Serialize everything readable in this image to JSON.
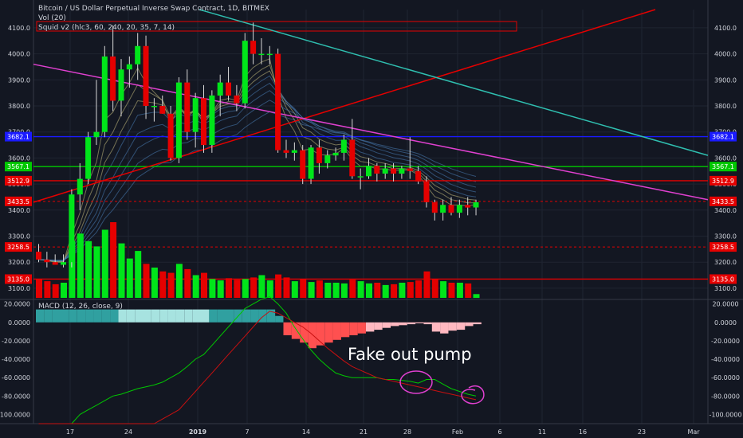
{
  "header": {
    "symbol": "Bitcoin / US Dollar Perpetual Inverse Swap Contract, 1D, BITMEX",
    "vol": "Vol (20)",
    "squid": "Squid v2 (hlc3, 60, 240, 20, 35, 7, 14)",
    "macd": "MACD (12, 26, close, 9)"
  },
  "annotation": "Fake out pump",
  "colors": {
    "background": "#131722",
    "up": "#00e51a",
    "down": "#e50000",
    "trend_red": "#e50000",
    "trend_magenta": "#e040d0",
    "trend_teal": "#2fbfb0",
    "level_blue": "#1a1aff",
    "level_green": "#00c800",
    "macd_line": "#00c800",
    "signal_line": "#c81010",
    "hist_teal": "#30a0a0",
    "hist_lightteal": "#a7e3e0",
    "hist_red": "#ff5050",
    "hist_pink": "#ffb8c0",
    "circle": "#e040d0"
  },
  "chart_data": [
    {
      "type": "candlestick",
      "title": "Bitcoin / US Dollar Perpetual Inverse Swap Contract, 1D, BITMEX",
      "x_ticks": [
        "17",
        "24",
        "2019",
        "7",
        "14",
        "21",
        "28",
        "Feb",
        "6",
        "11",
        "16",
        "23",
        "Mar"
      ],
      "y_ticks": [
        3100,
        3200,
        3300,
        3400,
        3500,
        3600,
        3700,
        3800,
        3900,
        4000,
        4100
      ],
      "ylim": [
        3060,
        4170
      ],
      "price_labels": [
        "3682.1",
        "3567.1",
        "3512.9",
        "3433.5",
        "3258.5",
        "3135.0"
      ],
      "levels": [
        {
          "value": 3682.1,
          "label": "3682.1",
          "style": "solid",
          "color": "#1a1aff"
        },
        {
          "value": 3567.1,
          "label": "3567.1",
          "style": "solid",
          "color": "#00c800"
        },
        {
          "value": 3512.9,
          "label": "3512.9",
          "style": "solid",
          "color": "#e50000"
        },
        {
          "value": 3433.5,
          "label": "3433.5",
          "style": "dashed",
          "color": "#e50000"
        },
        {
          "value": 3258.5,
          "label": "3258.5",
          "style": "dashed",
          "color": "#e50000"
        },
        {
          "value": 3135.0,
          "label": "3135.0",
          "style": "solid",
          "color": "#e50000"
        }
      ],
      "candles": [
        {
          "o": 3240,
          "h": 3270,
          "l": 3200,
          "c": 3210
        },
        {
          "o": 3210,
          "h": 3240,
          "l": 3180,
          "c": 3200
        },
        {
          "o": 3200,
          "h": 3230,
          "l": 3190,
          "c": 3190
        },
        {
          "o": 3190,
          "h": 3230,
          "l": 3180,
          "c": 3200
        },
        {
          "o": 3200,
          "h": 3480,
          "l": 3180,
          "c": 3460
        },
        {
          "o": 3460,
          "h": 3580,
          "l": 3400,
          "c": 3520
        },
        {
          "o": 3520,
          "h": 3700,
          "l": 3500,
          "c": 3680
        },
        {
          "o": 3680,
          "h": 3900,
          "l": 3650,
          "c": 3700
        },
        {
          "o": 3700,
          "h": 4030,
          "l": 3680,
          "c": 3990
        },
        {
          "o": 3990,
          "h": 4110,
          "l": 3780,
          "c": 3820
        },
        {
          "o": 3820,
          "h": 3980,
          "l": 3760,
          "c": 3940
        },
        {
          "o": 3940,
          "h": 3990,
          "l": 3870,
          "c": 3960
        },
        {
          "o": 3960,
          "h": 4080,
          "l": 3900,
          "c": 4030
        },
        {
          "o": 4030,
          "h": 4070,
          "l": 3750,
          "c": 3800
        },
        {
          "o": 3800,
          "h": 3830,
          "l": 3740,
          "c": 3800
        },
        {
          "o": 3800,
          "h": 3840,
          "l": 3770,
          "c": 3770
        },
        {
          "o": 3770,
          "h": 3800,
          "l": 3590,
          "c": 3600
        },
        {
          "o": 3600,
          "h": 3910,
          "l": 3580,
          "c": 3890
        },
        {
          "o": 3890,
          "h": 3940,
          "l": 3670,
          "c": 3700
        },
        {
          "o": 3700,
          "h": 3850,
          "l": 3640,
          "c": 3830
        },
        {
          "o": 3830,
          "h": 3880,
          "l": 3620,
          "c": 3650
        },
        {
          "o": 3650,
          "h": 3860,
          "l": 3620,
          "c": 3840
        },
        {
          "o": 3840,
          "h": 3920,
          "l": 3760,
          "c": 3890
        },
        {
          "o": 3890,
          "h": 3950,
          "l": 3820,
          "c": 3840
        },
        {
          "o": 3840,
          "h": 3880,
          "l": 3780,
          "c": 3810
        },
        {
          "o": 3810,
          "h": 4080,
          "l": 3790,
          "c": 4050
        },
        {
          "o": 4050,
          "h": 4120,
          "l": 3960,
          "c": 4000
        },
        {
          "o": 4000,
          "h": 4060,
          "l": 3960,
          "c": 4000
        },
        {
          "o": 4000,
          "h": 4030,
          "l": 3960,
          "c": 4000
        },
        {
          "o": 4000,
          "h": 4020,
          "l": 3620,
          "c": 3630
        },
        {
          "o": 3630,
          "h": 3670,
          "l": 3600,
          "c": 3620
        },
        {
          "o": 3620,
          "h": 3660,
          "l": 3590,
          "c": 3630
        },
        {
          "o": 3630,
          "h": 3650,
          "l": 3500,
          "c": 3520
        },
        {
          "o": 3520,
          "h": 3650,
          "l": 3500,
          "c": 3640
        },
        {
          "o": 3640,
          "h": 3670,
          "l": 3540,
          "c": 3580
        },
        {
          "o": 3580,
          "h": 3630,
          "l": 3560,
          "c": 3610
        },
        {
          "o": 3610,
          "h": 3640,
          "l": 3590,
          "c": 3620
        },
        {
          "o": 3620,
          "h": 3690,
          "l": 3590,
          "c": 3670
        },
        {
          "o": 3670,
          "h": 3750,
          "l": 3520,
          "c": 3530
        },
        {
          "o": 3530,
          "h": 3560,
          "l": 3480,
          "c": 3530
        },
        {
          "o": 3530,
          "h": 3600,
          "l": 3520,
          "c": 3570
        },
        {
          "o": 3570,
          "h": 3580,
          "l": 3510,
          "c": 3540
        },
        {
          "o": 3540,
          "h": 3580,
          "l": 3520,
          "c": 3560
        },
        {
          "o": 3560,
          "h": 3580,
          "l": 3510,
          "c": 3540
        },
        {
          "o": 3540,
          "h": 3570,
          "l": 3520,
          "c": 3560
        },
        {
          "o": 3560,
          "h": 3680,
          "l": 3520,
          "c": 3550
        },
        {
          "o": 3550,
          "h": 3570,
          "l": 3500,
          "c": 3510
        },
        {
          "o": 3510,
          "h": 3530,
          "l": 3410,
          "c": 3430
        },
        {
          "o": 3430,
          "h": 3440,
          "l": 3360,
          "c": 3390
        },
        {
          "o": 3390,
          "h": 3440,
          "l": 3360,
          "c": 3420
        },
        {
          "o": 3420,
          "h": 3450,
          "l": 3380,
          "c": 3390
        },
        {
          "o": 3390,
          "h": 3440,
          "l": 3370,
          "c": 3420
        },
        {
          "o": 3420,
          "h": 3450,
          "l": 3380,
          "c": 3410
        },
        {
          "o": 3410,
          "h": 3440,
          "l": 3380,
          "c": 3430
        }
      ],
      "volume_relative": [
        0.25,
        0.22,
        0.18,
        0.2,
        0.75,
        0.85,
        0.75,
        0.68,
        0.9,
        1.0,
        0.72,
        0.52,
        0.62,
        0.45,
        0.4,
        0.35,
        0.33,
        0.45,
        0.38,
        0.3,
        0.33,
        0.25,
        0.23,
        0.26,
        0.24,
        0.25,
        0.27,
        0.3,
        0.23,
        0.31,
        0.27,
        0.22,
        0.25,
        0.21,
        0.23,
        0.2,
        0.2,
        0.19,
        0.24,
        0.22,
        0.19,
        0.2,
        0.17,
        0.18,
        0.2,
        0.21,
        0.23,
        0.35,
        0.25,
        0.22,
        0.2,
        0.2,
        0.19,
        0.05
      ]
    },
    {
      "type": "macd",
      "title": "MACD (12, 26, close, 9)",
      "y_ticks": [
        20,
        0,
        -20,
        -40,
        -60,
        -80,
        -100
      ],
      "ylim": [
        -110,
        24
      ],
      "histogram": [
        14,
        14,
        14,
        14,
        14,
        14,
        14,
        14,
        14,
        14,
        14,
        14,
        14,
        14,
        14,
        14,
        14,
        14,
        14,
        14,
        14,
        14,
        14,
        14,
        14,
        14,
        14,
        14,
        14,
        7,
        -14,
        -18,
        -22,
        -28,
        -25,
        -22,
        -19,
        -16,
        -14,
        -12,
        -10,
        -8,
        -6,
        -4,
        -3,
        -2,
        -1,
        -2,
        -10,
        -12,
        -9,
        -8,
        -4,
        -2
      ],
      "macd_line": [
        -150,
        -140,
        -130,
        -120,
        -110,
        -100,
        -95,
        -90,
        -85,
        -80,
        -78,
        -75,
        -72,
        -70,
        -68,
        -65,
        -60,
        -55,
        -48,
        -40,
        -35,
        -25,
        -15,
        -5,
        5,
        15,
        20,
        25,
        28,
        20,
        10,
        -5,
        -18,
        -30,
        -40,
        -48,
        -55,
        -58,
        -60,
        -60,
        -60,
        -60,
        -62,
        -62,
        -63,
        -64,
        -66,
        -62,
        -62,
        -67,
        -72,
        -75,
        -78,
        -80
      ],
      "signal_line": [
        -180,
        -175,
        -170,
        -165,
        -160,
        -155,
        -150,
        -145,
        -140,
        -135,
        -130,
        -125,
        -120,
        -115,
        -110,
        -105,
        -100,
        -95,
        -85,
        -75,
        -65,
        -55,
        -45,
        -35,
        -25,
        -15,
        -5,
        5,
        12,
        10,
        5,
        0,
        -5,
        -12,
        -20,
        -28,
        -35,
        -42,
        -48,
        -52,
        -56,
        -60,
        -62,
        -64,
        -66,
        -68,
        -70,
        -72,
        -74,
        -76,
        -78,
        -80,
        -82,
        -84
      ]
    }
  ]
}
